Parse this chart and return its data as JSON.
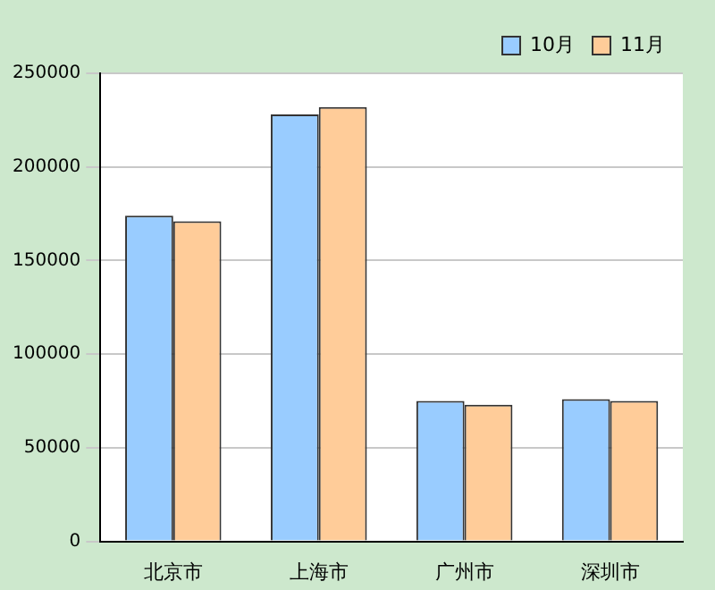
{
  "chart_data": {
    "type": "bar",
    "categories": [
      "北京市",
      "上海市",
      "广州市",
      "深圳市"
    ],
    "series": [
      {
        "name": "10月",
        "color": "#99ccff",
        "values": [
          174000,
          228000,
          75000,
          76000
        ]
      },
      {
        "name": "11月",
        "color": "#ffcc99",
        "values": [
          171000,
          232000,
          73000,
          75000
        ]
      }
    ],
    "ylim": [
      0,
      250000
    ],
    "yticks": [
      0,
      50000,
      100000,
      150000,
      200000,
      250000
    ],
    "grid": "y",
    "legend": "top right"
  }
}
